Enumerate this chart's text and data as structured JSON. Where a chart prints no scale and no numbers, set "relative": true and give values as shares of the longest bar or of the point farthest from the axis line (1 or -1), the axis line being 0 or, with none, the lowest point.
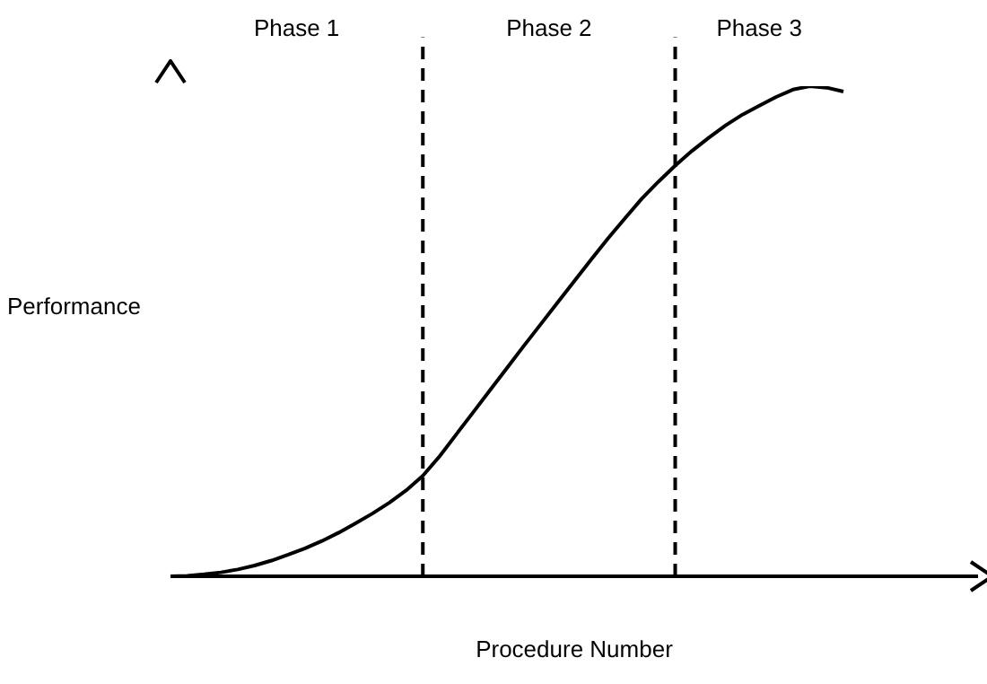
{
  "chart_data": {
    "type": "line",
    "xlabel": "Procedure Number",
    "ylabel": "Performance",
    "relative": true,
    "tick_labels": false,
    "grid": false,
    "legend": false,
    "marker": "none",
    "line_style": "solid",
    "categories": [
      null,
      null,
      null,
      null,
      null,
      null,
      null,
      null,
      null,
      null,
      null,
      null,
      null,
      null,
      null,
      null,
      null,
      null,
      null,
      null,
      null,
      null,
      null,
      null,
      null,
      null,
      null,
      null,
      null,
      null,
      null,
      null,
      null,
      null,
      null,
      null,
      null,
      null,
      null,
      null,
      null,
      null,
      null,
      null,
      null,
      null,
      null,
      null,
      null
    ],
    "series": [
      {
        "color": "#000000",
        "values": [
          0,
          0.001,
          0.004,
          0.008,
          0.014,
          0.022,
          0.032,
          0.044,
          0.057,
          0.072,
          0.089,
          0.108,
          0.128,
          0.15,
          0.175,
          0.205,
          0.245,
          0.29,
          0.335,
          0.38,
          0.425,
          0.47,
          0.514,
          0.558,
          0.602,
          0.646,
          0.689,
          0.73,
          0.77,
          0.805,
          0.838,
          0.868,
          0.895,
          0.92,
          0.942,
          0.96,
          0.978,
          0.993,
          1,
          0.997,
          0.989,
          null,
          null,
          null,
          null,
          null,
          null,
          null,
          null
        ]
      }
    ],
    "annotations": [
      "Phase 1",
      "Phase 2",
      "Phase 3"
    ]
  }
}
